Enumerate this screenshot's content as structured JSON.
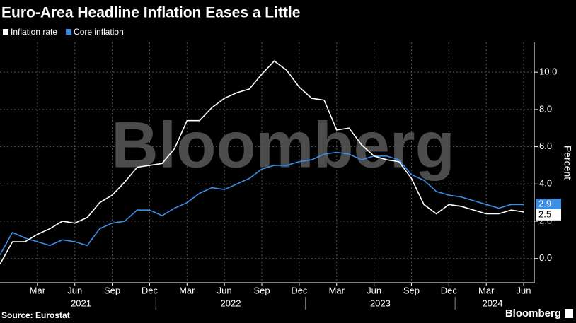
{
  "chart_data": {
    "type": "line",
    "title": "Euro-Area Headline Inflation Eases a Little",
    "y_label": "Percent",
    "source": "Source: Eurostat",
    "brand": "Bloomberg",
    "watermark": "Bloomberg",
    "categories": [
      null,
      null,
      null,
      "Mar",
      null,
      null,
      "Jun",
      null,
      null,
      "Sep",
      null,
      null,
      "Dec",
      null,
      null,
      "Mar",
      null,
      null,
      "Jun",
      null,
      null,
      "Sep",
      null,
      null,
      "Dec",
      null,
      null,
      "Mar",
      null,
      null,
      "Jun",
      null,
      null,
      "Sep",
      null,
      null,
      "Dec",
      null,
      null,
      "Mar",
      null,
      null,
      "Jun"
    ],
    "year_labels": [
      "2021",
      "2022",
      "2023",
      "2024"
    ],
    "series": [
      {
        "name": "Inflation rate",
        "color": "#ffffff",
        "values": [
          -0.3,
          0.9,
          0.9,
          1.3,
          1.6,
          2.0,
          1.9,
          2.2,
          3.0,
          3.4,
          4.1,
          4.9,
          5.0,
          5.1,
          5.9,
          7.4,
          7.4,
          8.1,
          8.6,
          8.9,
          9.1,
          9.9,
          10.6,
          10.1,
          9.2,
          8.6,
          8.5,
          6.9,
          7.0,
          6.1,
          5.5,
          5.3,
          5.2,
          4.3,
          2.9,
          2.4,
          2.9,
          2.8,
          2.6,
          2.4,
          2.4,
          2.6,
          2.5
        ]
      },
      {
        "name": "Core inflation",
        "color": "#3a8ee6",
        "values": [
          0.2,
          1.4,
          1.1,
          0.9,
          0.7,
          1.0,
          0.9,
          0.7,
          1.6,
          1.9,
          2.0,
          2.6,
          2.6,
          2.3,
          2.7,
          3.0,
          3.5,
          3.8,
          3.7,
          4.0,
          4.3,
          4.8,
          5.0,
          5.0,
          5.2,
          5.3,
          5.6,
          5.7,
          5.6,
          5.3,
          5.5,
          5.5,
          5.3,
          4.5,
          4.2,
          3.6,
          3.4,
          3.3,
          3.1,
          2.9,
          2.7,
          2.9,
          2.9
        ]
      }
    ],
    "ylim": [
      -1.3,
      11.6
    ],
    "yticks": [
      {
        "value": 0,
        "label": "0.0"
      },
      {
        "value": 2,
        "label": "2.0"
      },
      {
        "value": 4,
        "label": "4.0"
      },
      {
        "value": 6,
        "label": "6.0"
      },
      {
        "value": 8,
        "label": "8.0"
      },
      {
        "value": 10,
        "label": "10.0"
      }
    ],
    "grid": true
  }
}
